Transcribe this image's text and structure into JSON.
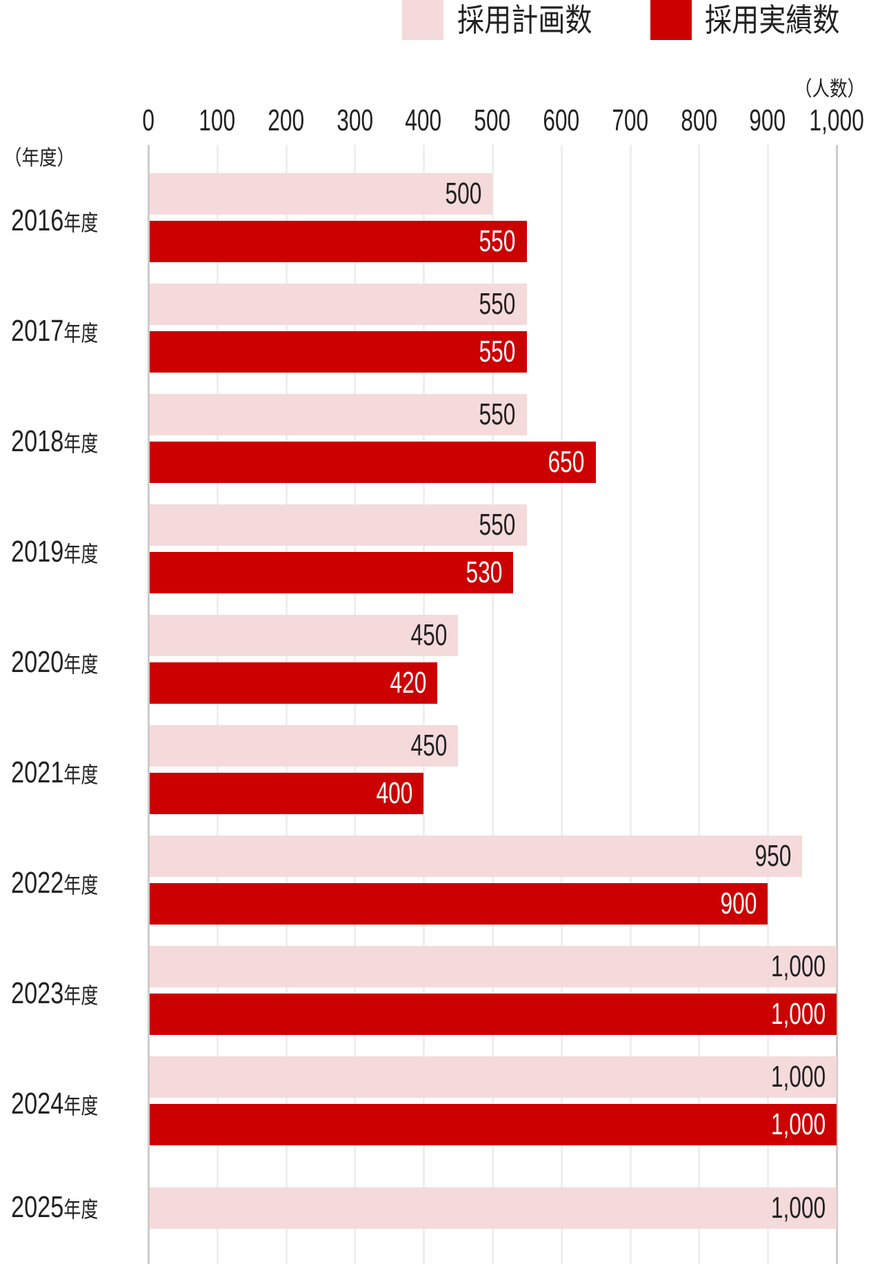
{
  "chart_data": {
    "type": "bar",
    "orientation": "horizontal",
    "legend": [
      {
        "label": "採用計画数",
        "color": "#f5dadb"
      },
      {
        "label": "採用実績数",
        "color": "#cc0000"
      }
    ],
    "legend_position": "top-right",
    "x_unit_label": "（人数）",
    "y_unit_label": "（年度）",
    "xlim": [
      0,
      1000
    ],
    "x_ticks": [
      "0",
      "100",
      "200",
      "300",
      "400",
      "500",
      "600",
      "700",
      "800",
      "900",
      "1,000"
    ],
    "grid": true,
    "year_suffix": "年度",
    "categories": [
      "2016",
      "2017",
      "2018",
      "2019",
      "2020",
      "2021",
      "2022",
      "2023",
      "2024",
      "2025"
    ],
    "series": [
      {
        "name": "採用計画数",
        "values": [
          500,
          550,
          550,
          550,
          450,
          450,
          950,
          1000,
          1000,
          1000
        ],
        "labels": [
          "500",
          "550",
          "550",
          "550",
          "450",
          "450",
          "950",
          "1,000",
          "1,000",
          "1,000"
        ]
      },
      {
        "name": "採用実績数",
        "values": [
          550,
          550,
          650,
          530,
          420,
          400,
          900,
          1000,
          1000,
          null
        ],
        "labels": [
          "550",
          "550",
          "650",
          "530",
          "420",
          "400",
          "900",
          "1,000",
          "1,000",
          null
        ]
      }
    ]
  }
}
